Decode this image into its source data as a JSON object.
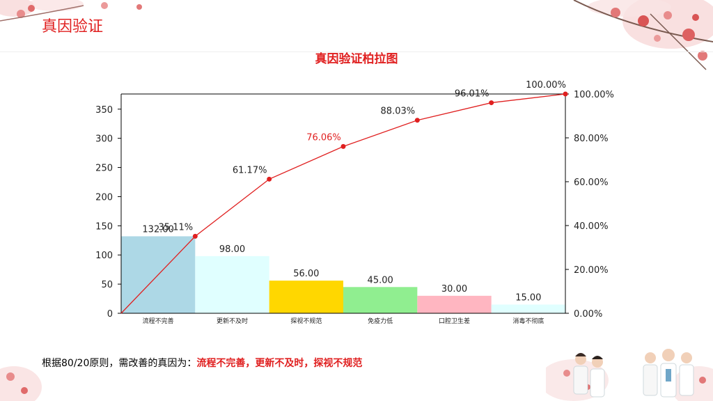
{
  "slide": {
    "title": "真因验证"
  },
  "conclusion": {
    "prefix": "根据80/20原则，需改善的真因为：",
    "highlight": "流程不完善，更新不及时，探视不规范"
  },
  "chart_data": {
    "type": "bar",
    "title": "真因验证柏拉图",
    "categories": [
      "流程不完善",
      "更新不及时",
      "探视不规范",
      "免疫力低",
      "口腔卫生差",
      "消毒不彻底"
    ],
    "values": [
      132.0,
      98.0,
      56.0,
      45.0,
      30.0,
      15.0
    ],
    "value_labels": [
      "132.00",
      "98.00",
      "56.00",
      "45.00",
      "30.00",
      "15.00"
    ],
    "bar_colors": [
      "#add8e6",
      "#e0ffff",
      "#ffd700",
      "#90ee90",
      "#ffb6c1",
      "#e0ffff"
    ],
    "cumulative_percent": [
      35.11,
      61.17,
      76.06,
      88.03,
      96.01,
      100.0
    ],
    "cumulative_labels": [
      "35.11%",
      "61.17%",
      "76.06%",
      "88.03%",
      "96.01%",
      "100.00%"
    ],
    "cumulative_label_colors": [
      "#222222",
      "#222222",
      "#e02020",
      "#222222",
      "#222222",
      "#222222"
    ],
    "line_color": "#e02020",
    "ylim": [
      0,
      376
    ],
    "yticks": [
      0,
      50,
      100,
      150,
      200,
      250,
      300,
      350
    ],
    "y2lim": [
      0,
      100
    ],
    "y2ticks": [
      "0.00%",
      "20.00%",
      "40.00%",
      "60.00%",
      "80.00%",
      "100.00%"
    ],
    "grid": false
  }
}
